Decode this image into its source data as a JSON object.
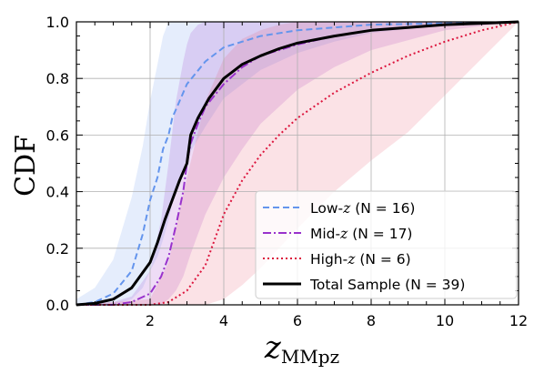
{
  "chart_data": {
    "type": "line",
    "xlabel": "z",
    "xlabel_sub": "MMpz",
    "ylabel": "CDF",
    "xlim": [
      0,
      12
    ],
    "ylim": [
      0,
      1.0
    ],
    "xticks": [
      2,
      4,
      6,
      8,
      10,
      12
    ],
    "yticks": [
      0.0,
      0.2,
      0.4,
      0.6,
      0.8,
      1.0
    ],
    "xtick_labels": [
      "2",
      "4",
      "6",
      "8",
      "10",
      "12"
    ],
    "ytick_labels": [
      "0.0",
      "0.2",
      "0.4",
      "0.6",
      "0.8",
      "1.0"
    ],
    "grid": true,
    "legend_position": "lower-right",
    "series": [
      {
        "name": "Low-z (N = 16)",
        "label_prefix": "Low-",
        "label_italic": "z",
        "label_suffix": " (N = 16)",
        "color": "#6495ED",
        "dash": "dashed",
        "band_color": "#6495ED",
        "x": [
          0,
          0.5,
          1.0,
          1.5,
          1.8,
          2.0,
          2.2,
          2.35,
          2.5,
          2.6,
          2.8,
          3.0,
          3.5,
          4.0,
          5.0,
          6.0,
          7.0,
          8.0,
          10.0,
          12.0
        ],
        "y": [
          0.0,
          0.01,
          0.04,
          0.12,
          0.25,
          0.37,
          0.45,
          0.55,
          0.6,
          0.66,
          0.72,
          0.78,
          0.86,
          0.91,
          0.95,
          0.97,
          0.98,
          0.99,
          0.995,
          1.0
        ],
        "band_upper": [
          0.02,
          0.06,
          0.16,
          0.38,
          0.56,
          0.72,
          0.85,
          0.95,
          1.0,
          1.0,
          1.0,
          1.0,
          1.0,
          1.0,
          1.0,
          1.0,
          1.0,
          1.0,
          1.0,
          1.0
        ],
        "band_lower": [
          0.0,
          0.0,
          0.0,
          0.02,
          0.06,
          0.12,
          0.17,
          0.23,
          0.3,
          0.36,
          0.45,
          0.52,
          0.63,
          0.73,
          0.83,
          0.89,
          0.93,
          0.96,
          0.99,
          1.0
        ]
      },
      {
        "name": "Mid-z (N = 17)",
        "label_prefix": "Mid-",
        "label_italic": "z",
        "label_suffix": " (N = 17)",
        "color": "#9932CC",
        "dash": "dashdot",
        "band_color": "#9932CC",
        "x": [
          0,
          1.0,
          1.5,
          2.0,
          2.3,
          2.5,
          2.7,
          2.9,
          3.0,
          3.1,
          3.3,
          3.5,
          4.0,
          4.5,
          5.0,
          6.0,
          7.0,
          8.0,
          10.0,
          12.0
        ],
        "y": [
          0.0,
          0.0,
          0.01,
          0.04,
          0.1,
          0.17,
          0.28,
          0.4,
          0.5,
          0.57,
          0.64,
          0.7,
          0.78,
          0.84,
          0.88,
          0.92,
          0.95,
          0.97,
          0.99,
          1.0
        ],
        "band_upper": [
          0.0,
          0.01,
          0.03,
          0.12,
          0.3,
          0.5,
          0.72,
          0.86,
          0.92,
          0.96,
          0.99,
          1.0,
          1.0,
          1.0,
          1.0,
          1.0,
          1.0,
          1.0,
          1.0,
          1.0
        ],
        "band_lower": [
          0.0,
          0.0,
          0.0,
          0.0,
          0.0,
          0.02,
          0.05,
          0.1,
          0.14,
          0.18,
          0.25,
          0.32,
          0.45,
          0.55,
          0.64,
          0.76,
          0.84,
          0.9,
          0.97,
          1.0
        ]
      },
      {
        "name": "High-z (N = 6)",
        "label_prefix": "High-",
        "label_italic": "z",
        "label_suffix": " (N = 6)",
        "color": "#DC143C",
        "dash": "dotted",
        "band_color": "#E8556A",
        "x": [
          0,
          2.0,
          2.5,
          3.0,
          3.5,
          4.0,
          4.5,
          5.0,
          5.5,
          6.0,
          7.0,
          8.0,
          9.0,
          10.0,
          11.0,
          12.0
        ],
        "y": [
          0.0,
          0.0,
          0.01,
          0.05,
          0.14,
          0.32,
          0.44,
          0.53,
          0.6,
          0.66,
          0.75,
          0.82,
          0.88,
          0.93,
          0.97,
          1.0
        ],
        "band_upper": [
          0.0,
          0.02,
          0.15,
          0.45,
          0.72,
          0.87,
          0.94,
          0.97,
          0.99,
          1.0,
          1.0,
          1.0,
          1.0,
          1.0,
          1.0,
          1.0
        ],
        "band_lower": [
          0.0,
          0.0,
          0.0,
          0.0,
          0.0,
          0.02,
          0.07,
          0.13,
          0.2,
          0.27,
          0.4,
          0.51,
          0.61,
          0.74,
          0.87,
          1.0
        ]
      },
      {
        "name": "Total Sample (N = 39)",
        "label_prefix": "Total Sample (N = 39)",
        "label_italic": "",
        "label_suffix": "",
        "color": "#000000",
        "dash": "solid",
        "band_color": "",
        "x": [
          0,
          0.5,
          1.0,
          1.5,
          2.0,
          2.2,
          2.4,
          2.6,
          2.8,
          3.0,
          3.1,
          3.3,
          3.6,
          4.0,
          4.5,
          5.0,
          5.5,
          6.0,
          7.0,
          8.0,
          9.0,
          10.0,
          11.0,
          12.0
        ],
        "y": [
          0.0,
          0.005,
          0.02,
          0.06,
          0.15,
          0.22,
          0.3,
          0.37,
          0.44,
          0.5,
          0.6,
          0.66,
          0.73,
          0.8,
          0.85,
          0.88,
          0.905,
          0.925,
          0.95,
          0.97,
          0.98,
          0.99,
          0.995,
          1.0
        ],
        "band_upper": [],
        "band_lower": []
      }
    ]
  }
}
